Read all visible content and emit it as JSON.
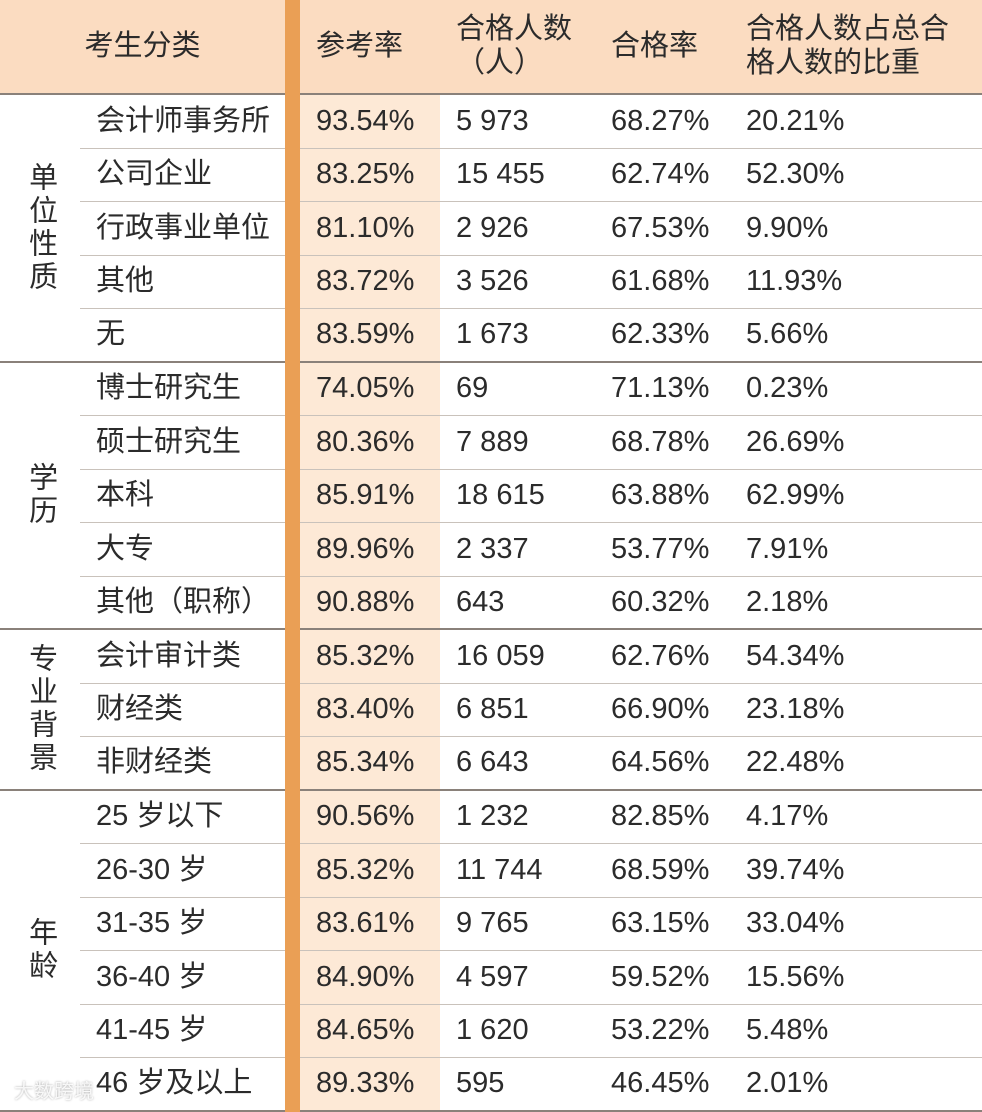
{
  "header": [
    "考生分类",
    "参考率",
    "合格人数\n（人）",
    "合格率",
    "合格人数占总合\n格人数的比重"
  ],
  "groups": [
    {
      "label": "单位性质",
      "rows": [
        [
          "会计师事务所",
          "93.54%",
          "5 973",
          "68.27%",
          "20.21%"
        ],
        [
          "公司企业",
          "83.25%",
          "15 455",
          "62.74%",
          "52.30%"
        ],
        [
          "行政事业单位",
          "81.10%",
          "2 926",
          "67.53%",
          "9.90%"
        ],
        [
          "其他",
          "83.72%",
          "3 526",
          "61.68%",
          "11.93%"
        ],
        [
          "无",
          "83.59%",
          "1 673",
          "62.33%",
          "5.66%"
        ]
      ]
    },
    {
      "label": "学历",
      "rows": [
        [
          "博士研究生",
          "74.05%",
          "69",
          "71.13%",
          "0.23%"
        ],
        [
          "硕士研究生",
          "80.36%",
          "7 889",
          "68.78%",
          "26.69%"
        ],
        [
          "本科",
          "85.91%",
          "18 615",
          "63.88%",
          "62.99%"
        ],
        [
          "大专",
          "89.96%",
          "2 337",
          "53.77%",
          "7.91%"
        ],
        [
          "其他（职称）",
          "90.88%",
          "643",
          "60.32%",
          "2.18%"
        ]
      ]
    },
    {
      "label": "专业背景",
      "rows": [
        [
          "会计审计类",
          "85.32%",
          "16 059",
          "62.76%",
          "54.34%"
        ],
        [
          "财经类",
          "83.40%",
          "6 851",
          "66.90%",
          "23.18%"
        ],
        [
          "非财经类",
          "85.34%",
          "6 643",
          "64.56%",
          "22.48%"
        ]
      ]
    },
    {
      "label": "年龄",
      "rows": [
        [
          "25 岁以下",
          "90.56%",
          "1 232",
          "82.85%",
          "4.17%"
        ],
        [
          "26-30 岁",
          "85.32%",
          "11 744",
          "68.59%",
          "39.74%"
        ],
        [
          "31-35 岁",
          "83.61%",
          "9 765",
          "63.15%",
          "33.04%"
        ],
        [
          "36-40 岁",
          "84.90%",
          "4 597",
          "59.52%",
          "15.56%"
        ],
        [
          "41-45 岁",
          "84.65%",
          "1 620",
          "53.22%",
          "5.48%"
        ],
        [
          "46 岁及以上",
          "89.33%",
          "595",
          "46.45%",
          "2.01%"
        ]
      ]
    }
  ],
  "watermark": "大数跨境"
}
